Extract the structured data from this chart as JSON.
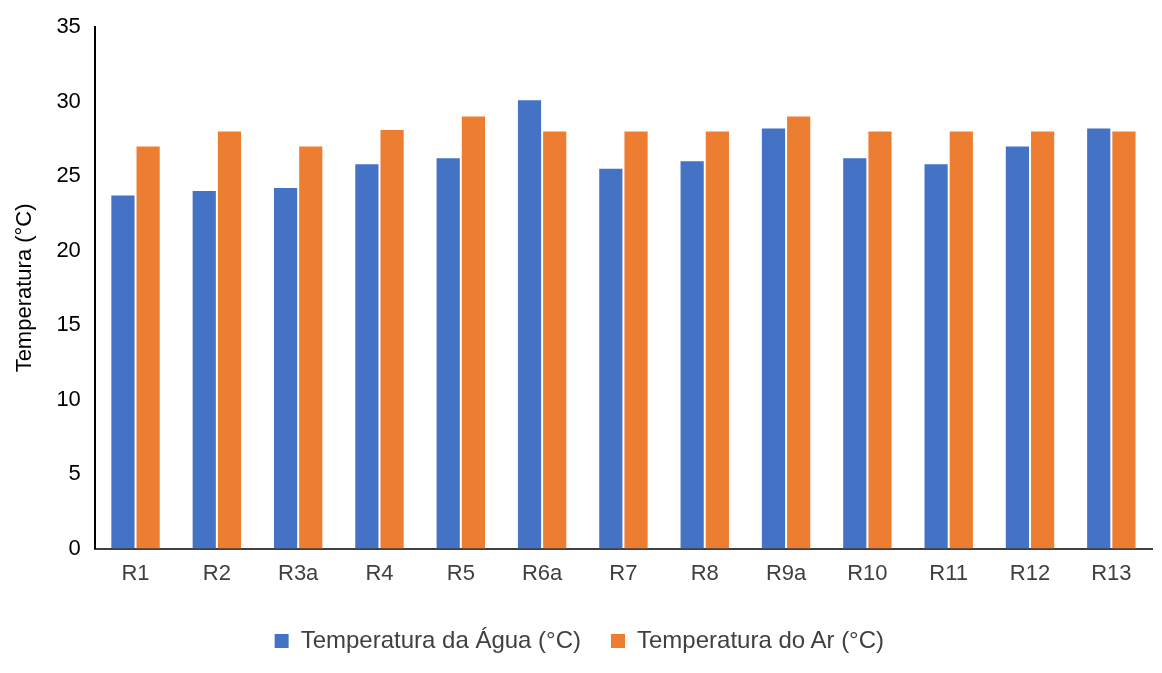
{
  "chart_data": {
    "type": "bar",
    "ylabel": "Temperatura (°C)",
    "categories": [
      "R1",
      "R2",
      "R3a",
      "R4",
      "R5",
      "R6a",
      "R7",
      "R8",
      "R9a",
      "R10",
      "R11",
      "R12",
      "R13"
    ],
    "series": [
      {
        "name": "Temperatura da Água (°C)",
        "color": "#4472c4",
        "values": [
          23.7,
          24.0,
          24.2,
          25.8,
          26.2,
          30.1,
          25.5,
          26.0,
          28.2,
          26.2,
          25.8,
          27.0,
          28.2
        ]
      },
      {
        "name": "Temperatura do Ar (°C)",
        "color": "#ed7d31",
        "values": [
          27.0,
          28.0,
          27.0,
          28.1,
          29.0,
          28.0,
          28.0,
          28.0,
          29.0,
          28.0,
          28.0,
          28.0,
          28.0
        ]
      }
    ],
    "ylim": [
      0,
      35
    ],
    "yticks": [
      0,
      5,
      10,
      15,
      20,
      25,
      30,
      35
    ],
    "grid": false,
    "legend": "bottom"
  }
}
